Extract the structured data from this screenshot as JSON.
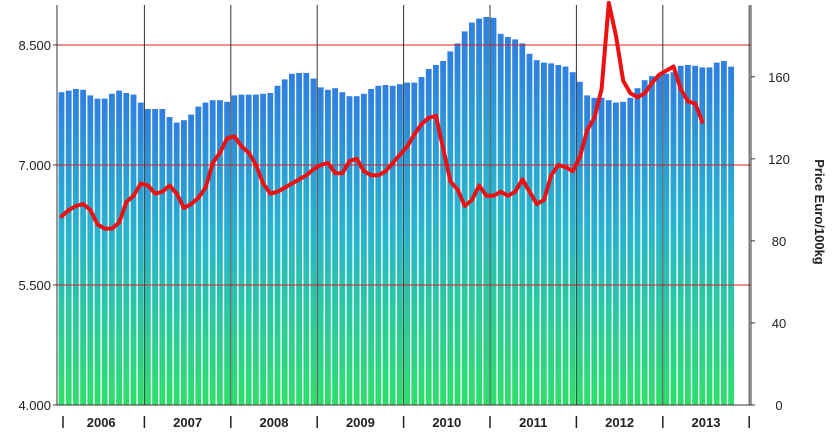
{
  "chart_data": {
    "type": "bar",
    "title": "",
    "xlabel": "",
    "ylabel_left": "",
    "ylabel_right": "Price Euro/100kg",
    "year_labels": [
      "2006",
      "2007",
      "2008",
      "2009",
      "2010",
      "2011",
      "2012",
      "2013"
    ],
    "left_axis": {
      "ylim": [
        4000,
        9000
      ],
      "ticks": [
        4000,
        5500,
        7000,
        8500
      ],
      "tick_labels": [
        "4.000",
        "5.500",
        "7.000",
        "8.500"
      ]
    },
    "right_axis": {
      "ylim": [
        0,
        195
      ],
      "ticks": [
        0,
        40,
        80,
        120,
        160
      ],
      "tick_labels": [
        "0",
        "40",
        "80",
        "120",
        "160"
      ]
    },
    "series": [
      {
        "type": "bar",
        "axis": "left",
        "start": "2006-01",
        "values": [
          7910,
          7930,
          7950,
          7940,
          7870,
          7830,
          7830,
          7890,
          7930,
          7900,
          7880,
          7780,
          7700,
          7700,
          7700,
          7600,
          7530,
          7560,
          7630,
          7730,
          7780,
          7810,
          7810,
          7790,
          7870,
          7880,
          7880,
          7880,
          7890,
          7900,
          7990,
          8070,
          8140,
          8150,
          8150,
          8080,
          7970,
          7940,
          7960,
          7910,
          7860,
          7860,
          7890,
          7950,
          7990,
          8000,
          7990,
          8010,
          8030,
          8030,
          8100,
          8200,
          8250,
          8300,
          8420,
          8520,
          8670,
          8780,
          8830,
          8850,
          8840,
          8640,
          8600,
          8570,
          8520,
          8390,
          8310,
          8280,
          8270,
          8250,
          8230,
          8160,
          8040,
          7870,
          7840,
          7840,
          7810,
          7780,
          7790,
          7840,
          7960,
          8060,
          8110,
          8130,
          8140,
          8160,
          8240,
          8250,
          8240,
          8220,
          8220,
          8280,
          8300,
          8230
        ]
      },
      {
        "type": "line",
        "axis": "right",
        "color": "#ee1111",
        "start": "2006-01",
        "values": [
          92,
          95,
          97,
          98,
          95,
          88,
          86,
          86,
          89,
          99,
          102,
          108,
          107,
          103,
          104,
          107,
          103,
          96,
          98,
          101,
          106,
          118,
          123,
          130,
          131,
          126,
          123,
          117,
          108,
          103,
          104,
          106,
          108,
          110,
          112,
          115,
          117,
          118,
          113,
          113,
          119,
          120,
          114,
          112,
          112,
          114,
          118,
          122,
          126,
          132,
          137,
          140,
          141,
          125,
          109,
          105,
          97,
          100,
          107,
          102,
          102,
          104,
          102,
          104,
          110,
          104,
          98,
          100,
          112,
          117,
          116,
          114,
          121,
          134,
          140,
          154,
          196,
          180,
          158,
          152,
          150,
          152,
          157,
          161,
          163,
          165,
          154,
          148,
          147,
          138
        ]
      }
    ]
  }
}
